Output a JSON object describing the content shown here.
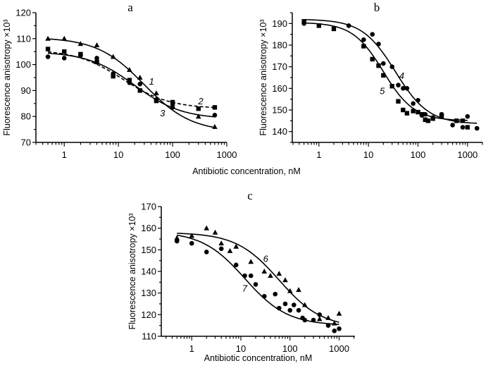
{
  "figure": {
    "shared_xlabel": "Antibiotic concentration, nM"
  },
  "chart_data": [
    {
      "panel": "a",
      "type": "scatter",
      "title": "a",
      "xlabel": "",
      "ylabel": "Fluorescence anisotropy ×10³",
      "xscale": "log",
      "xlim": [
        0.3,
        1000
      ],
      "ylim": [
        70,
        120
      ],
      "xticks": [
        "1",
        "10",
        "100",
        "1000"
      ],
      "yticks": [
        "70",
        "80",
        "90",
        "100",
        "110",
        "120"
      ],
      "grid": false,
      "series": [
        {
          "label": "1",
          "marker": "triangle",
          "line": "solid",
          "label_at": [
            41,
            93.6
          ],
          "fit": {
            "top": 110.5,
            "bottom": 74,
            "ec50": 30,
            "hill": 1
          },
          "points": [
            [
              0.5,
              110
            ],
            [
              1,
              110
            ],
            [
              2,
              108
            ],
            [
              4,
              107.5
            ],
            [
              8,
              103
            ],
            [
              16,
              98
            ],
            [
              25,
              95
            ],
            [
              50,
              89
            ],
            [
              100,
              85
            ],
            [
              300,
              80
            ],
            [
              600,
              76
            ]
          ]
        },
        {
          "label": "2",
          "marker": "square",
          "line": "dashed",
          "label_at": [
            330,
            86
          ],
          "fit": {
            "top": 105.8,
            "bottom": 83,
            "ec50": 12,
            "hill": 1
          },
          "points": [
            [
              0.5,
              106
            ],
            [
              1,
              105
            ],
            [
              2,
              104
            ],
            [
              4,
              101
            ],
            [
              8,
              95.5
            ],
            [
              16,
              94
            ],
            [
              25,
              90
            ],
            [
              50,
              86
            ],
            [
              100,
              85.5
            ],
            [
              300,
              83
            ],
            [
              600,
              83.5
            ]
          ]
        },
        {
          "label": "3",
          "marker": "circle",
          "line": "solid",
          "label_at": [
            65,
            81.4
          ],
          "fit": {
            "top": 105,
            "bottom": 79,
            "ec50": 20,
            "hill": 1
          },
          "points": [
            [
              0.5,
              103
            ],
            [
              1,
              102.5
            ],
            [
              2,
              103.5
            ],
            [
              4,
              102.5
            ],
            [
              8,
              96.5
            ],
            [
              16,
              93
            ],
            [
              25,
              92.5
            ],
            [
              50,
              86.5
            ],
            [
              100,
              83.5
            ],
            [
              600,
              80.5
            ]
          ]
        }
      ]
    },
    {
      "panel": "b",
      "type": "scatter",
      "title": "b",
      "xlabel": "",
      "ylabel": "Fluorescence anisotropy ×10³",
      "xscale": "log",
      "xlim": [
        0.29,
        2000
      ],
      "ylim": [
        135,
        195
      ],
      "xticks": [
        "1",
        "10",
        "100",
        "1000"
      ],
      "yticks": [
        "140",
        "150",
        "160",
        "170",
        "180",
        "190"
      ],
      "grid": false,
      "series": [
        {
          "label": "4",
          "marker": "circle",
          "line": "solid",
          "label_at": [
            47,
            166
          ],
          "fit": {
            "top": 192,
            "bottom": 143.5,
            "ec50": 35,
            "hill": 1.3
          },
          "points": [
            [
              0.5,
              190
            ],
            [
              4,
              189
            ],
            [
              8,
              182.5
            ],
            [
              12,
              185
            ],
            [
              16,
              180.5
            ],
            [
              20,
              171.5
            ],
            [
              30,
              170
            ],
            [
              40,
              161.5
            ],
            [
              50,
              160
            ],
            [
              60,
              160
            ],
            [
              80,
              153
            ],
            [
              100,
              154.5
            ],
            [
              120,
              147.5
            ],
            [
              140,
              148
            ],
            [
              200,
              146.5
            ],
            [
              300,
              148
            ],
            [
              500,
              143
            ],
            [
              800,
              142
            ],
            [
              1000,
              147
            ],
            [
              1550,
              141.5
            ]
          ]
        },
        {
          "label": "5",
          "marker": "square",
          "line": "solid",
          "label_at": [
            19,
            159
          ],
          "fit": {
            "top": 190.5,
            "bottom": 145,
            "ec50": 20,
            "hill": 1.4
          },
          "points": [
            [
              0.5,
              191
            ],
            [
              1,
              189
            ],
            [
              2,
              187.5
            ],
            [
              8,
              179.5
            ],
            [
              12,
              173.5
            ],
            [
              16,
              170.5
            ],
            [
              20,
              166
            ],
            [
              30,
              161
            ],
            [
              40,
              154
            ],
            [
              50,
              150
            ],
            [
              60,
              148.5
            ],
            [
              80,
              149.5
            ],
            [
              100,
              149
            ],
            [
              120,
              148
            ],
            [
              140,
              145.5
            ],
            [
              160,
              145
            ],
            [
              200,
              146
            ],
            [
              300,
              147
            ],
            [
              600,
              145
            ],
            [
              800,
              145
            ],
            [
              1000,
              142
            ]
          ]
        }
      ]
    },
    {
      "panel": "c",
      "type": "scatter",
      "title": "c",
      "xlabel": "Antibiotic concentration, nM",
      "ylabel": "Fluorescence anisotropy ×10³",
      "xscale": "log",
      "xlim": [
        0.24,
        2100
      ],
      "ylim": [
        110,
        170
      ],
      "xticks": [
        "1",
        "10",
        "100",
        "1000"
      ],
      "yticks": [
        "110",
        "120",
        "130",
        "140",
        "150",
        "160",
        "170"
      ],
      "grid": false,
      "series": [
        {
          "label": "6",
          "marker": "triangle",
          "line": "solid",
          "label_at": [
            32,
            146
          ],
          "fit": {
            "top": 158,
            "bottom": 114,
            "ec50": 60,
            "hill": 1
          },
          "points": [
            [
              0.5,
              155.5
            ],
            [
              1,
              156.5
            ],
            [
              2,
              160
            ],
            [
              3,
              158
            ],
            [
              4,
              153
            ],
            [
              6,
              149.5
            ],
            [
              8,
              151.5
            ],
            [
              16,
              144.5
            ],
            [
              30,
              140
            ],
            [
              40,
              138
            ],
            [
              60,
              139
            ],
            [
              80,
              136
            ],
            [
              100,
              131
            ],
            [
              150,
              131.5
            ],
            [
              200,
              124.5
            ],
            [
              400,
              118
            ],
            [
              600,
              118.5
            ],
            [
              800,
              116
            ],
            [
              1000,
              120.5
            ]
          ]
        },
        {
          "label": "7",
          "marker": "circle",
          "line": "solid",
          "label_at": [
            12,
            132.4
          ],
          "fit": {
            "top": 158.5,
            "bottom": 115,
            "ec50": 12,
            "hill": 1
          },
          "points": [
            [
              0.5,
              154
            ],
            [
              1,
              153
            ],
            [
              2,
              149
            ],
            [
              4,
              150.5
            ],
            [
              8,
              143
            ],
            [
              12,
              138
            ],
            [
              16,
              138
            ],
            [
              20,
              134
            ],
            [
              30,
              128.5
            ],
            [
              50,
              129.5
            ],
            [
              60,
              123
            ],
            [
              80,
              125
            ],
            [
              100,
              122
            ],
            [
              120,
              124.5
            ],
            [
              150,
              122
            ],
            [
              180,
              118.5
            ],
            [
              200,
              117.5
            ],
            [
              300,
              117.5
            ],
            [
              400,
              120
            ],
            [
              600,
              115
            ],
            [
              800,
              112.5
            ],
            [
              1000,
              113.5
            ]
          ]
        }
      ]
    }
  ]
}
